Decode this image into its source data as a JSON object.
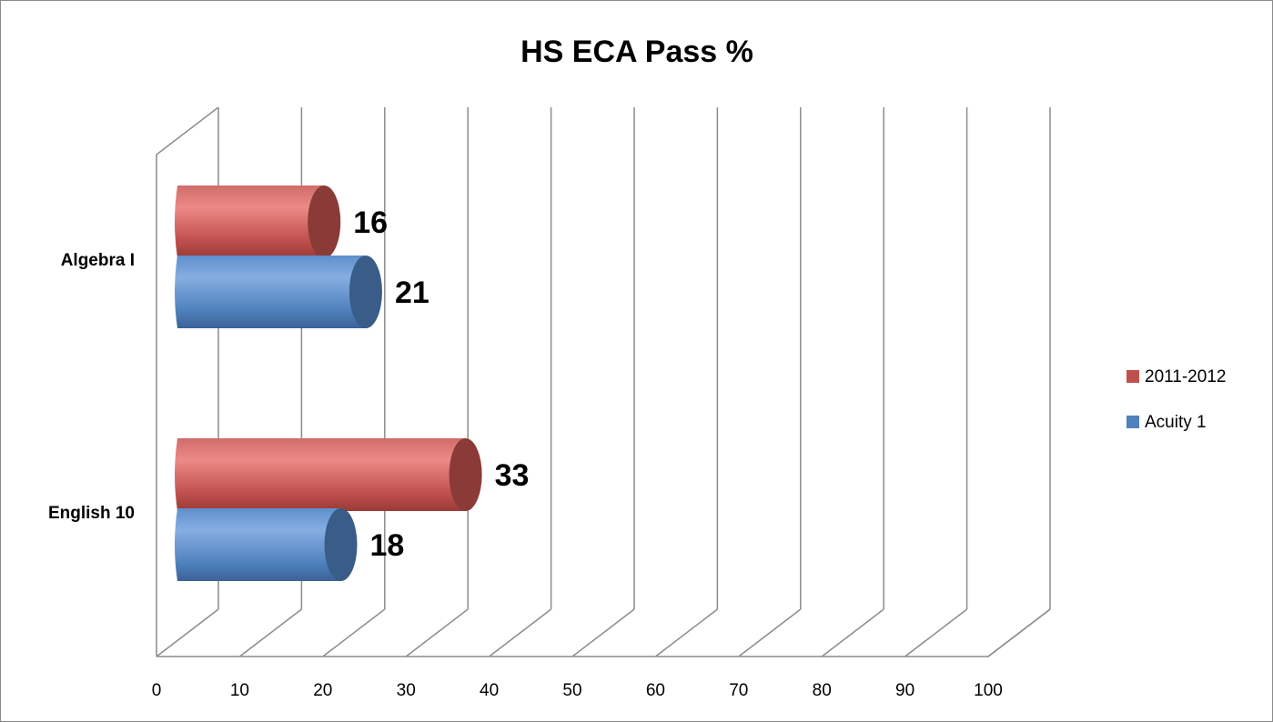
{
  "chart_data": {
    "type": "bar",
    "orientation": "horizontal",
    "style": "3d-cylinder",
    "title": "HS ECA Pass %",
    "categories": [
      "Algebra I",
      "English 10"
    ],
    "series": [
      {
        "name": "2011-2012",
        "values": [
          16,
          33
        ],
        "color": "#c0504d"
      },
      {
        "name": "Acuity 1",
        "values": [
          21,
          18
        ],
        "color": "#4f81bd"
      }
    ],
    "xlim": [
      0,
      100
    ],
    "x_ticks": [
      "0",
      "10",
      "20",
      "30",
      "40",
      "50",
      "60",
      "70",
      "80",
      "90",
      "100"
    ],
    "grid": true,
    "legend": "right",
    "data_labels": true
  }
}
